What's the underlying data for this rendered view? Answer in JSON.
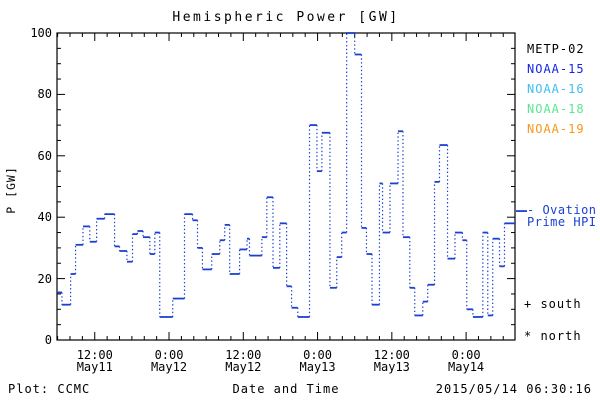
{
  "title": "Hemispheric Power [GW]",
  "y_axis": {
    "label": "P [GW]",
    "ticks": [
      "0",
      "20",
      "40",
      "60",
      "80",
      "100"
    ]
  },
  "x_axis": {
    "label": "Date and Time",
    "ticks": [
      {
        "time": "12:00",
        "date": "May11"
      },
      {
        "time": "0:00",
        "date": "May12"
      },
      {
        "time": "12:00",
        "date": "May12"
      },
      {
        "time": "0:00",
        "date": "May13"
      },
      {
        "time": "12:00",
        "date": "May13"
      },
      {
        "time": "0:00",
        "date": "May14"
      }
    ]
  },
  "legend": {
    "items": [
      {
        "label": "METP-02",
        "color": "#000000"
      },
      {
        "label": "NOAA-15",
        "color": "#1626e8"
      },
      {
        "label": "NOAA-16",
        "color": "#3cc0f0"
      },
      {
        "label": "NOAA-18",
        "color": "#58e88e"
      },
      {
        "label": "NOAA-19",
        "color": "#f79818"
      }
    ]
  },
  "annotations": {
    "ovation_line1": "- Ovation",
    "ovation_line2": "Prime HPI",
    "south": "+ south",
    "north": "* north"
  },
  "footer": {
    "credit": "Plot: CCMC",
    "timestamp": "2015/05/14 06:30:16"
  },
  "chart_data": {
    "type": "line",
    "subtype": "step-post",
    "title": "Hemispheric Power [GW]",
    "xlabel": "Date and Time",
    "ylabel": "P [GW]",
    "ylim": [
      0,
      100
    ],
    "xlim": [
      5.9,
      79.9
    ],
    "x_unit": "hours since 2015-05-11 00:00 UT",
    "x_major_ticks": [
      12,
      24,
      36,
      48,
      60,
      72
    ],
    "x_minor_step": 2,
    "y_major_step": 20,
    "y_minor_step": 5,
    "grid": false,
    "legend_position": "right-outside",
    "series": [
      {
        "name": "Ovation Prime HPI",
        "color": "#1c41d2",
        "marker_value_at_right_axis": 42,
        "t": [
          5.9,
          6.7,
          8.1,
          8.9,
          10.1,
          11.2,
          12.3,
          13.6,
          15.2,
          16.0,
          17.2,
          18.1,
          18.9,
          19.8,
          20.9,
          21.7,
          22.5,
          24.6,
          26.5,
          27.8,
          28.6,
          29.4,
          30.9,
          32.2,
          33.0,
          33.8,
          35.4,
          36.6,
          37.0,
          39.0,
          39.8,
          40.8,
          41.9,
          43.0,
          43.8,
          44.8,
          46.7,
          47.9,
          48.7,
          50.0,
          51.1,
          51.9,
          52.7,
          54.0,
          55.1,
          55.9,
          56.8,
          58.0,
          58.5,
          59.7,
          61.0,
          61.8,
          62.9,
          63.7,
          65.0,
          65.8,
          66.9,
          67.7,
          69.0,
          70.2,
          71.4,
          72.1,
          73.1,
          74.7,
          75.5,
          76.3,
          77.4,
          78.2
        ],
        "v": [
          15.5,
          11.5,
          21.5,
          31,
          37,
          32,
          39.5,
          41,
          30.5,
          29,
          25.5,
          34.5,
          35.5,
          33.5,
          28,
          35,
          7.5,
          13.5,
          41,
          39,
          30,
          23,
          28,
          32.5,
          37.5,
          21.5,
          29.5,
          33,
          27.5,
          33.5,
          46.5,
          23.5,
          38,
          17.5,
          10.5,
          7.5,
          70,
          55,
          67.5,
          17,
          27,
          35,
          100,
          93,
          36.5,
          28,
          11.5,
          51,
          35,
          51,
          68,
          33.5,
          17,
          8,
          12.5,
          18,
          51.5,
          63.5,
          26.5,
          35,
          32.5,
          10,
          7.5,
          35,
          8,
          33,
          24,
          38
        ]
      }
    ]
  }
}
